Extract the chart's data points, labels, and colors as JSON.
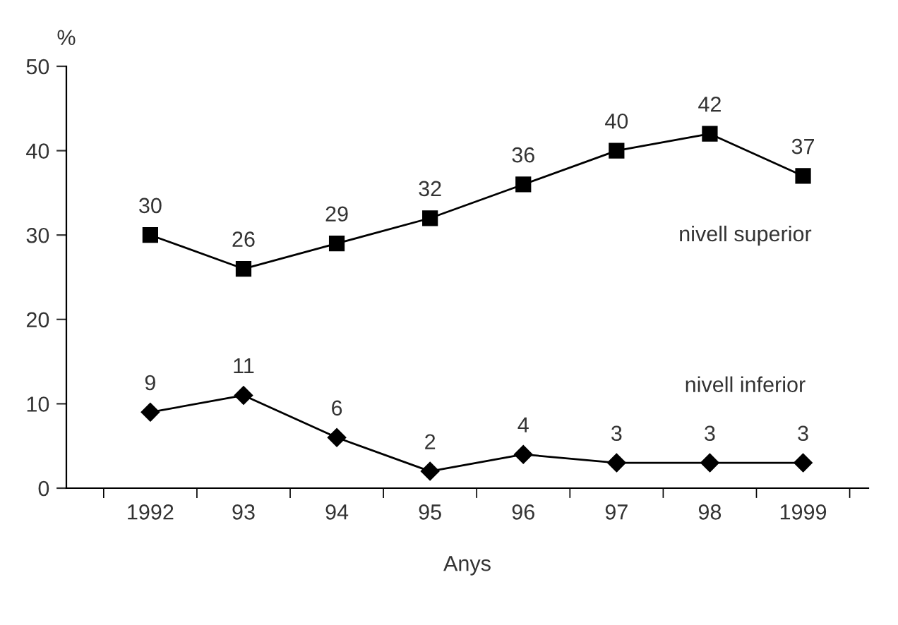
{
  "chart_data": {
    "type": "line",
    "ylabel": "%",
    "xlabel": "Anys",
    "categories": [
      "1992",
      "93",
      "94",
      "95",
      "96",
      "97",
      "98",
      "1999"
    ],
    "ylim": [
      0,
      50
    ],
    "yticks": [
      0,
      10,
      20,
      30,
      40,
      50
    ],
    "data_labels": true,
    "grid": false,
    "legend": false,
    "series": [
      {
        "name": "nivell superior",
        "color": "#000000",
        "marker": "square",
        "values": [
          30,
          26,
          29,
          32,
          36,
          40,
          42,
          37
        ]
      },
      {
        "name": "nivell inferior",
        "color": "#000000",
        "marker": "diamond",
        "values": [
          9,
          11,
          6,
          2,
          4,
          3,
          3,
          3
        ]
      }
    ]
  }
}
